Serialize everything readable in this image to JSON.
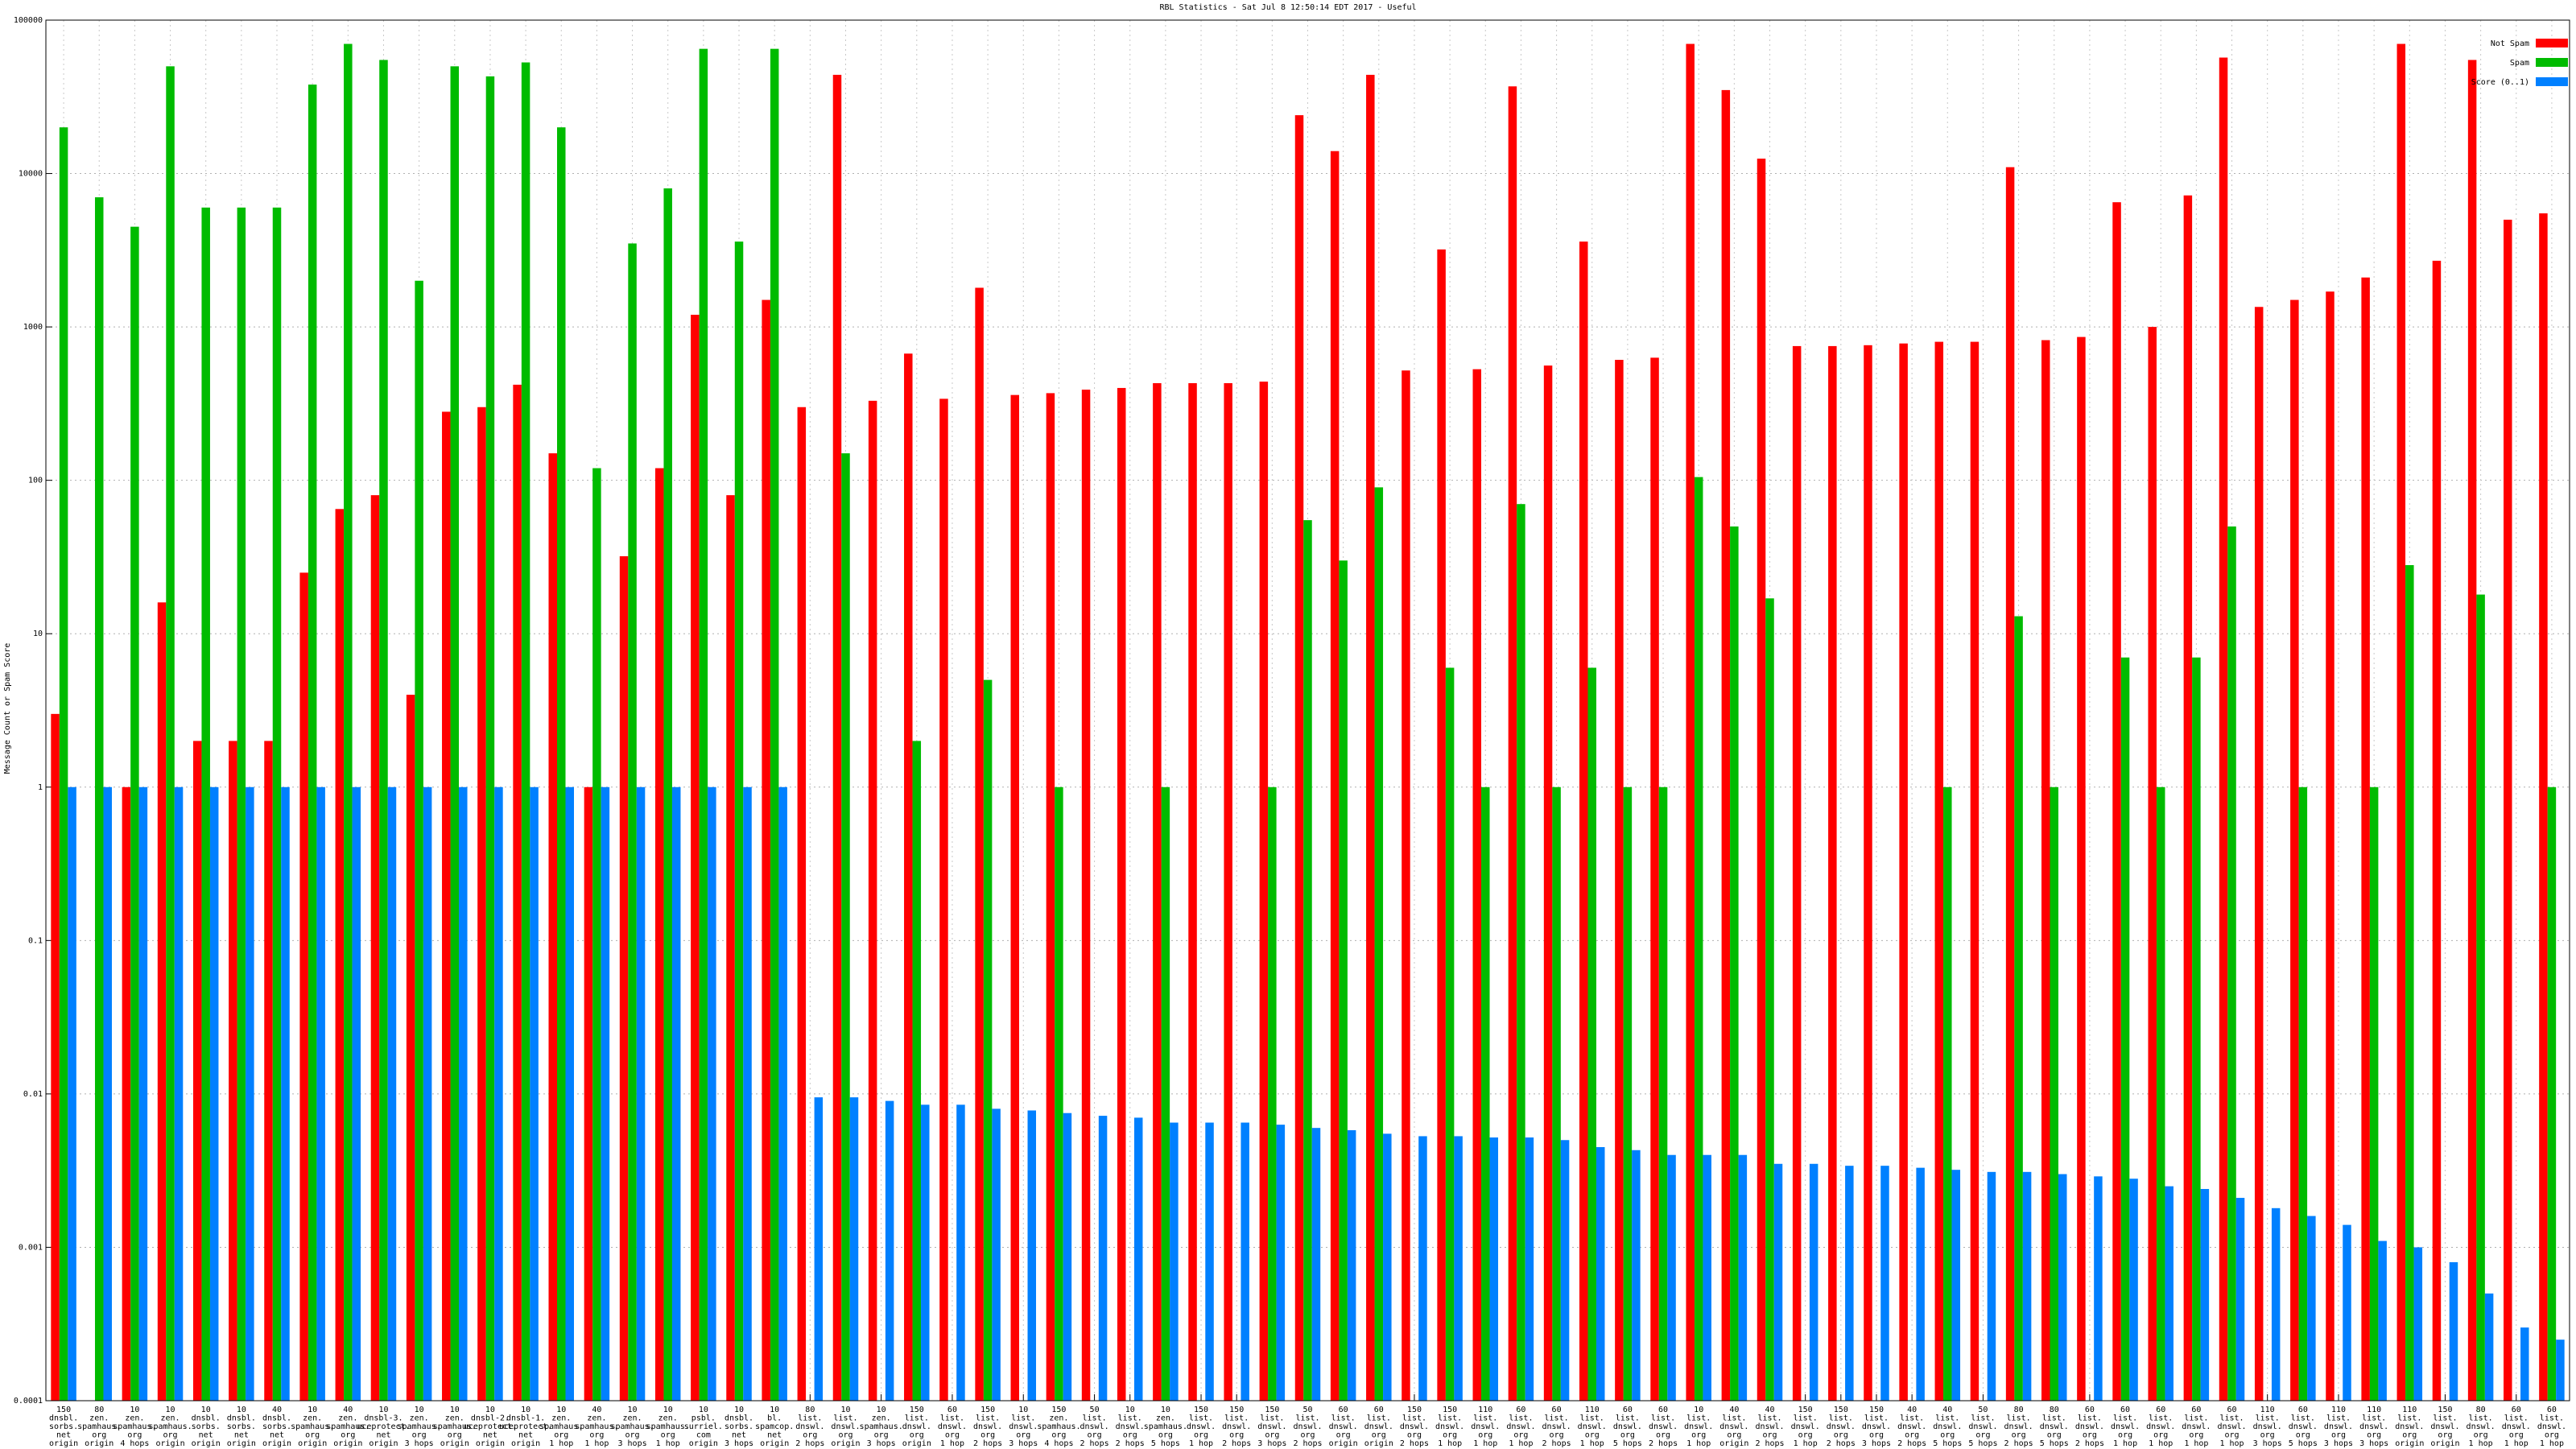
{
  "chart_data": {
    "type": "bar",
    "title": "RBL Statistics - Sat Jul  8 12:50:14 EDT 2017 - Useful",
    "y_label": "Message Count or Spam Score",
    "log_scale": true,
    "grid": true,
    "legend": "top-right",
    "ylim": [
      0.0001,
      100000
    ],
    "yticks": [
      0.0001,
      0.001,
      0.01,
      0.1,
      1,
      10,
      100,
      1000,
      10000,
      100000
    ],
    "categories": [
      [
        "150",
        "dnsbl.",
        "sorbs.",
        "net",
        "origin"
      ],
      [
        "80",
        "zen.",
        "spamhaus.",
        "org",
        "origin"
      ],
      [
        "10",
        "zen.",
        "spamhaus.",
        "org",
        "4 hops"
      ],
      [
        "10",
        "zen.",
        "spamhaus.",
        "org",
        "origin"
      ],
      [
        "10",
        "dnsbl.",
        "sorbs.",
        "net",
        "origin"
      ],
      [
        "10",
        "dnsbl.",
        "sorbs.",
        "net",
        "origin"
      ],
      [
        "40",
        "dnsbl.",
        "sorbs.",
        "net",
        "origin"
      ],
      [
        "10",
        "zen.",
        "spamhaus.",
        "org",
        "origin"
      ],
      [
        "40",
        "zen.",
        "spamhaus.",
        "org",
        "origin"
      ],
      [
        "10",
        "dnsbl-3.",
        "uceprotect.",
        "net",
        "origin"
      ],
      [
        "10",
        "zen.",
        "spamhaus.",
        "org",
        "3 hops"
      ],
      [
        "10",
        "zen.",
        "spamhaus.",
        "org",
        "origin"
      ],
      [
        "10",
        "dnsbl-2.",
        "uceprotect.",
        "net",
        "origin"
      ],
      [
        "10",
        "dnsbl-1.",
        "uceprotect.",
        "net",
        "origin"
      ],
      [
        "10",
        "zen.",
        "spamhaus.",
        "org",
        "1 hop"
      ],
      [
        "40",
        "zen.",
        "spamhaus.",
        "org",
        "1 hop"
      ],
      [
        "10",
        "zen.",
        "spamhaus.",
        "org",
        "3 hops"
      ],
      [
        "10",
        "zen.",
        "spamhaus.",
        "org",
        "1 hop"
      ],
      [
        "10",
        "psbl.",
        "surriel.",
        "com",
        "origin"
      ],
      [
        "10",
        "dnsbl.",
        "sorbs.",
        "net",
        "3 hops"
      ],
      [
        "10",
        "bl.",
        "spamcop.",
        "net",
        "origin"
      ],
      [
        "80",
        "list.",
        "dnswl.",
        "org",
        "2 hops"
      ],
      [
        "10",
        "list.",
        "dnswl.",
        "org",
        "origin"
      ],
      [
        "10",
        "zen.",
        "spamhaus.",
        "org",
        "3 hops"
      ],
      [
        "150",
        "list.",
        "dnswl.",
        "org",
        "origin"
      ],
      [
        "60",
        "list.",
        "dnswl.",
        "org",
        "1 hop"
      ],
      [
        "150",
        "list.",
        "dnswl.",
        "org",
        "2 hops"
      ],
      [
        "10",
        "list.",
        "dnswl.",
        "org",
        "3 hops"
      ],
      [
        "150",
        "zen.",
        "spamhaus.",
        "org",
        "4 hops"
      ],
      [
        "50",
        "list.",
        "dnswl.",
        "org",
        "2 hops"
      ],
      [
        "10",
        "list.",
        "dnswl.",
        "org",
        "2 hops"
      ],
      [
        "10",
        "zen.",
        "spamhaus.",
        "org",
        "5 hops"
      ],
      [
        "150",
        "list.",
        "dnswl.",
        "org",
        "1 hop"
      ],
      [
        "150",
        "list.",
        "dnswl.",
        "org",
        "2 hops"
      ],
      [
        "150",
        "list.",
        "dnswl.",
        "org",
        "3 hops"
      ],
      [
        "50",
        "list.",
        "dnswl.",
        "org",
        "2 hops"
      ],
      [
        "60",
        "list.",
        "dnswl.",
        "org",
        "origin"
      ],
      [
        "60",
        "list.",
        "dnswl.",
        "org",
        "origin"
      ],
      [
        "150",
        "list.",
        "dnswl.",
        "org",
        "2 hops"
      ],
      [
        "150",
        "list.",
        "dnswl.",
        "org",
        "1 hop"
      ],
      [
        "110",
        "list.",
        "dnswl.",
        "org",
        "1 hop"
      ],
      [
        "60",
        "list.",
        "dnswl.",
        "org",
        "1 hop"
      ],
      [
        "60",
        "list.",
        "dnswl.",
        "org",
        "2 hops"
      ],
      [
        "110",
        "list.",
        "dnswl.",
        "org",
        "1 hop"
      ],
      [
        "60",
        "list.",
        "dnswl.",
        "org",
        "5 hops"
      ],
      [
        "60",
        "list.",
        "dnswl.",
        "org",
        "2 hops"
      ],
      [
        "10",
        "list.",
        "dnswl.",
        "org",
        "1 hop"
      ],
      [
        "40",
        "list.",
        "dnswl.",
        "org",
        "origin"
      ],
      [
        "40",
        "list.",
        "dnswl.",
        "org",
        "2 hops"
      ],
      [
        "150",
        "list.",
        "dnswl.",
        "org",
        "1 hop"
      ],
      [
        "150",
        "list.",
        "dnswl.",
        "org",
        "2 hops"
      ],
      [
        "150",
        "list.",
        "dnswl.",
        "org",
        "3 hops"
      ],
      [
        "40",
        "list.",
        "dnswl.",
        "org",
        "2 hops"
      ],
      [
        "40",
        "list.",
        "dnswl.",
        "org",
        "5 hops"
      ],
      [
        "50",
        "list.",
        "dnswl.",
        "org",
        "5 hops"
      ],
      [
        "80",
        "list.",
        "dnswl.",
        "org",
        "2 hops"
      ],
      [
        "80",
        "list.",
        "dnswl.",
        "org",
        "5 hops"
      ],
      [
        "60",
        "list.",
        "dnswl.",
        "org",
        "2 hops"
      ],
      [
        "60",
        "list.",
        "dnswl.",
        "org",
        "1 hop"
      ],
      [
        "60",
        "list.",
        "dnswl.",
        "org",
        "1 hop"
      ],
      [
        "60",
        "list.",
        "dnswl.",
        "org",
        "1 hop"
      ],
      [
        "60",
        "list.",
        "dnswl.",
        "org",
        "1 hop"
      ],
      [
        "110",
        "list.",
        "dnswl.",
        "org",
        "3 hops"
      ],
      [
        "60",
        "list.",
        "dnswl.",
        "org",
        "5 hops"
      ],
      [
        "110",
        "list.",
        "dnswl.",
        "org",
        "3 hops"
      ],
      [
        "110",
        "list.",
        "dnswl.",
        "org",
        "3 hops"
      ],
      [
        "110",
        "list.",
        "dnswl.",
        "org",
        "origin"
      ],
      [
        "150",
        "list.",
        "dnswl.",
        "org",
        "origin"
      ],
      [
        "80",
        "list.",
        "dnswl.",
        "org",
        "1 hop"
      ],
      [
        "60",
        "list.",
        "dnswl.",
        "org",
        "1 hop"
      ],
      [
        "60",
        "list.",
        "dnswl.",
        "org",
        "1 hop"
      ]
    ],
    "series": [
      {
        "name": "Not Spam",
        "color": "#ff0000",
        "values": [
          3,
          null,
          1,
          16,
          2,
          2,
          2,
          25,
          65,
          80,
          4,
          280,
          300,
          420,
          150,
          1,
          32,
          120,
          1200,
          80,
          1500,
          300,
          44000,
          330,
          670,
          340,
          1800,
          360,
          370,
          390,
          400,
          430,
          430,
          430,
          440,
          24000,
          14000,
          44000,
          520,
          3200,
          530,
          37000,
          560,
          3600,
          610,
          630,
          70000,
          35000,
          12500,
          750,
          750,
          760,
          780,
          800,
          800,
          11000,
          820,
          860,
          6500,
          1000,
          7200,
          57000,
          1350,
          1500,
          1700,
          2100,
          70000,
          2700,
          55000,
          5000,
          5500
        ]
      },
      {
        "name": "Spam",
        "color": "#00bb00",
        "values": [
          20000,
          7000,
          4500,
          50000,
          6000,
          6000,
          6000,
          38000,
          70000,
          55000,
          2000,
          50000,
          43000,
          53000,
          20000,
          120,
          3500,
          8000,
          65000,
          3600,
          65000,
          null,
          150,
          null,
          2,
          null,
          5,
          null,
          1,
          null,
          null,
          1,
          null,
          null,
          1,
          55,
          30,
          90,
          null,
          6,
          1,
          70,
          1,
          6,
          1,
          1,
          105,
          50,
          17,
          null,
          null,
          null,
          null,
          1,
          null,
          13,
          1,
          null,
          7,
          1,
          7,
          50,
          null,
          1,
          null,
          1,
          28,
          null,
          18,
          null,
          1
        ]
      },
      {
        "name": "Score (0..1)",
        "color": "#0080ff",
        "values": [
          1,
          1,
          1,
          1,
          1,
          1,
          1,
          1,
          1,
          1,
          1,
          1,
          1,
          1,
          1,
          1,
          1,
          1,
          1,
          1,
          1,
          0.0095,
          0.0095,
          0.009,
          0.0085,
          0.0085,
          0.008,
          0.0078,
          0.0075,
          0.0072,
          0.007,
          0.0065,
          0.0065,
          0.0065,
          0.0063,
          0.006,
          0.0058,
          0.0055,
          0.0053,
          0.0053,
          0.0052,
          0.0052,
          0.005,
          0.0045,
          0.0043,
          0.004,
          0.004,
          0.004,
          0.0035,
          0.0035,
          0.0034,
          0.0034,
          0.0033,
          0.0032,
          0.0031,
          0.0031,
          0.003,
          0.0029,
          0.0028,
          0.0025,
          0.0024,
          0.0021,
          0.0018,
          0.0016,
          0.0014,
          0.0011,
          0.001,
          0.0008,
          0.0005,
          0.0003,
          0.00025
        ]
      }
    ]
  }
}
